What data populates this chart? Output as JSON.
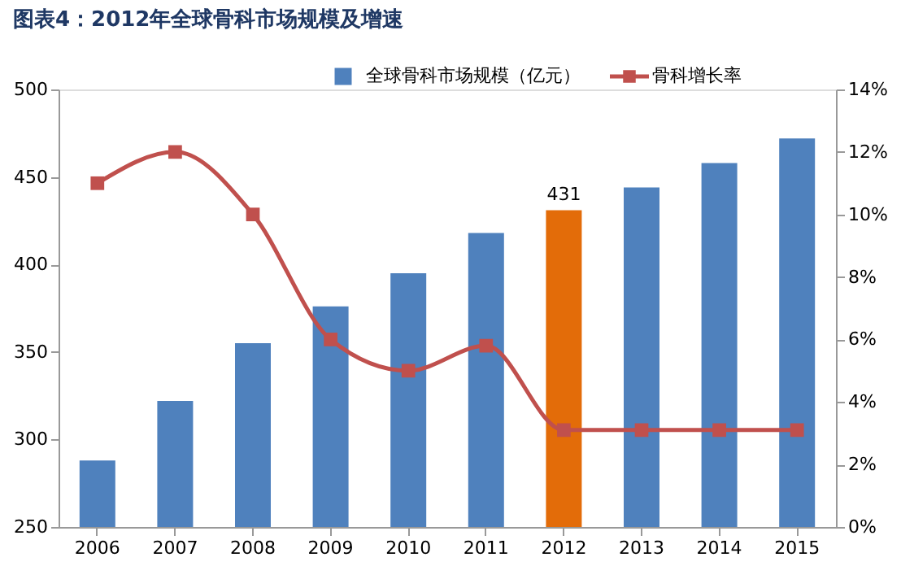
{
  "chart_data": {
    "type": "bar",
    "title": "图表4：2012年全球骨科市场规模及增速",
    "categories": [
      "2006",
      "2007",
      "2008",
      "2009",
      "2010",
      "2011",
      "2012",
      "2013",
      "2014",
      "2015"
    ],
    "series": [
      {
        "name": "全球骨科市场规模（亿元）",
        "type": "bar",
        "colors": [
          "#4f81bd",
          "#4f81bd",
          "#4f81bd",
          "#4f81bd",
          "#4f81bd",
          "#4f81bd",
          "#e36c09",
          "#4f81bd",
          "#4f81bd",
          "#4f81bd"
        ],
        "color": "#4f81bd",
        "values": [
          288,
          322,
          355,
          376,
          395,
          418,
          431,
          444,
          458,
          472
        ],
        "value_labels": [
          null,
          null,
          null,
          null,
          null,
          null,
          "431",
          null,
          null,
          null
        ]
      },
      {
        "name": "骨科增长率",
        "type": "line",
        "axis": "y2",
        "color": "#c0504d",
        "marker": "square",
        "values": [
          11,
          12,
          10,
          6,
          5,
          5.8,
          3.1,
          3.1,
          3.1,
          3.1
        ]
      }
    ],
    "ylim": [
      250,
      500
    ],
    "yticks": [
      250,
      300,
      350,
      400,
      450,
      500
    ],
    "y2lim": [
      0,
      14
    ],
    "y2ticks": [
      {
        "value": 0,
        "label": "0%"
      },
      {
        "value": 2,
        "label": "2%"
      },
      {
        "value": 4,
        "label": "4%"
      },
      {
        "value": 6,
        "label": "6%"
      },
      {
        "value": 8,
        "label": "8%"
      },
      {
        "value": 10,
        "label": "10%"
      },
      {
        "value": 12,
        "label": "12%"
      },
      {
        "value": 14,
        "label": "14%"
      }
    ],
    "legend": "top"
  }
}
